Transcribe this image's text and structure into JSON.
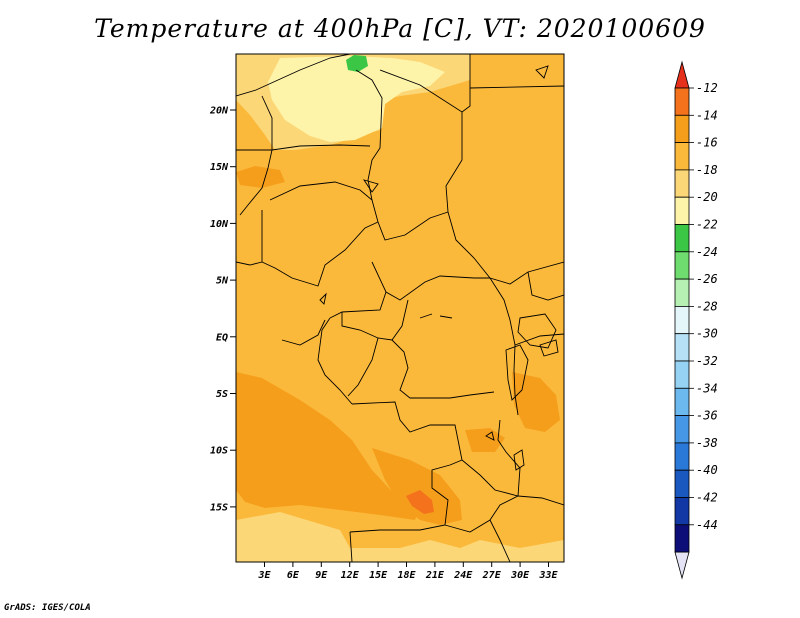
{
  "title": "Temperature at 400hPa [C], VT: 2020100609",
  "footer": "GrADS: IGES/COLA",
  "colors": {
    "base": "#FBB93B",
    "light": "#FCD777",
    "pale": "#FEF4A9",
    "warm": "#F59E1C",
    "hot": "#F4721C",
    "green": "#3BC646"
  },
  "map": {
    "lat_labels": [
      "20N",
      "15N",
      "10N",
      "5N",
      "EQ",
      "5S",
      "10S",
      "15S"
    ],
    "lon_labels": [
      "3E",
      "6E",
      "9E",
      "12E",
      "15E",
      "18E",
      "21E",
      "24E",
      "27E",
      "30E",
      "33E"
    ]
  },
  "colorbar": {
    "labels": [
      "-12",
      "-14",
      "-16",
      "-18",
      "-20",
      "-22",
      "-24",
      "-26",
      "-28",
      "-30",
      "-32",
      "-34",
      "-36",
      "-38",
      "-40",
      "-42",
      "-44"
    ],
    "colors": [
      "#F4721C",
      "#F59E1C",
      "#FBB93B",
      "#FCD777",
      "#FEF4A9",
      "#3BC646",
      "#6FDC6F",
      "#B6F0B2",
      "#E4F6F9",
      "#B6E0F6",
      "#96D2F4",
      "#6CB9F0",
      "#4698E6",
      "#2A78D8",
      "#1A58C0",
      "#1238A6",
      "#0E0E78"
    ],
    "top_color": "#E5301C",
    "bottom_color": "#E4E4F6"
  }
}
